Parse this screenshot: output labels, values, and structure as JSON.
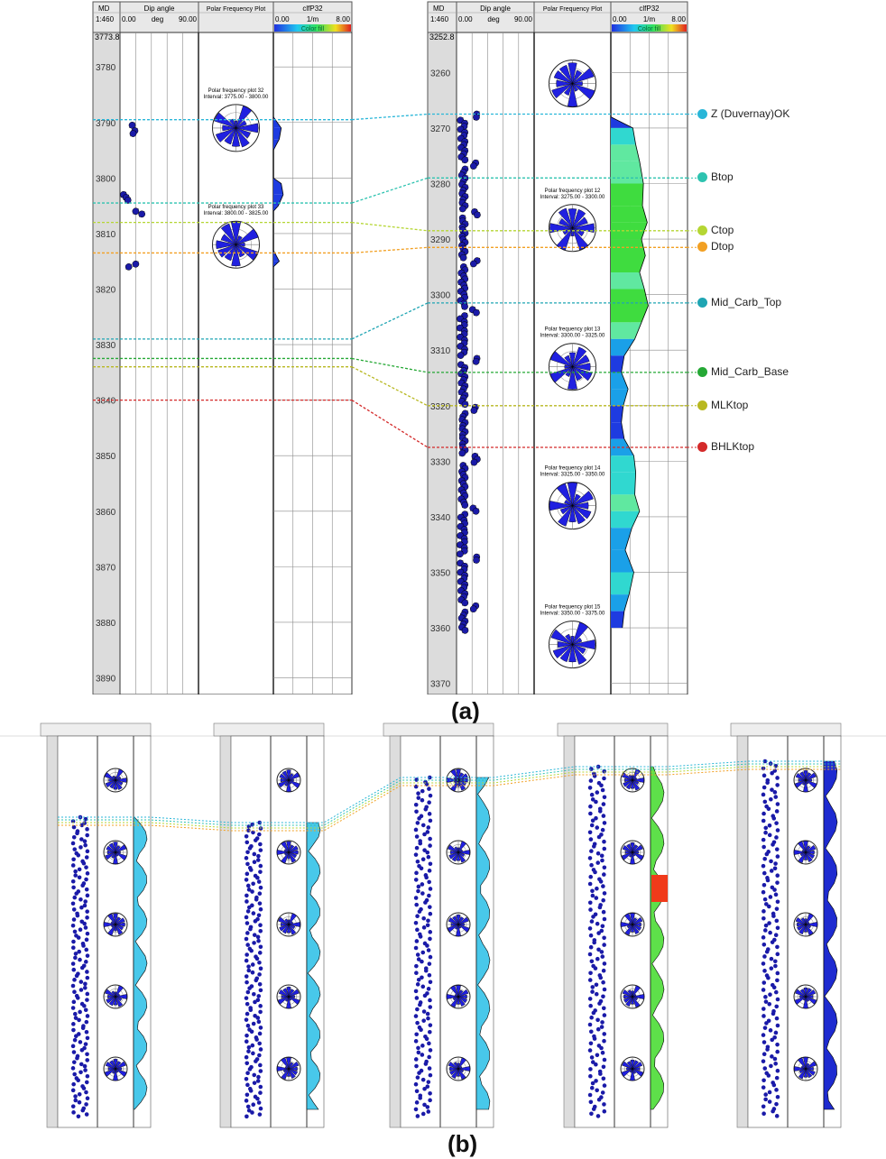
{
  "panel_a": {
    "caption": "(a)",
    "header": {
      "md_label": "MD",
      "md_scale": "1:460",
      "dip_label": "Dip angle",
      "dip_min": "0.00",
      "dip_unit": "deg",
      "dip_max": "90.00",
      "polar_label": "Polar Frequency Plot",
      "p32_label": "clfP32",
      "p32_min": "0.00",
      "p32_unit": "1/m",
      "p32_max": "8.00",
      "colorfill_label": "Color fill"
    }
  },
  "panel_b": {
    "caption": "(b)"
  },
  "chart_data": [
    {
      "type": "scatter",
      "panel": "a",
      "well": "left",
      "depth_top": 3773.8,
      "depth_range": [
        3773.8,
        3893
      ],
      "depth_ticks": [
        3780,
        3790,
        3800,
        3810,
        3820,
        3830,
        3840,
        3850,
        3860,
        3870,
        3880,
        3890
      ],
      "xlim": [
        0,
        90
      ],
      "dips": [
        {
          "md": 3790.5,
          "dip": 14
        },
        {
          "md": 3791.5,
          "dip": 17
        },
        {
          "md": 3792,
          "dip": 15
        },
        {
          "md": 3803,
          "dip": 4
        },
        {
          "md": 3803.5,
          "dip": 7
        },
        {
          "md": 3804,
          "dip": 9
        },
        {
          "md": 3806,
          "dip": 18
        },
        {
          "md": 3806.5,
          "dip": 25
        },
        {
          "md": 3816,
          "dip": 10
        },
        {
          "md": 3815.5,
          "dip": 18
        }
      ],
      "rose_plots": [
        {
          "title": "Polar frequency plot 32",
          "interval": "Interval: 3775.00 - 3800.00",
          "md": 3791
        },
        {
          "title": "Polar frequency plot 33",
          "interval": "Interval: 3800.00 - 3825.00",
          "md": 3812
        }
      ],
      "p32": [
        {
          "md": 3789,
          "v": 0.0
        },
        {
          "md": 3791,
          "v": 0.8
        },
        {
          "md": 3793,
          "v": 0.6
        },
        {
          "md": 3795,
          "v": 0.0
        },
        {
          "md": 3800,
          "v": 0.0
        },
        {
          "md": 3801,
          "v": 0.8
        },
        {
          "md": 3803,
          "v": 1.0
        },
        {
          "md": 3805,
          "v": 0.5
        },
        {
          "md": 3806,
          "v": 0.0
        },
        {
          "md": 3813,
          "v": 0.0
        },
        {
          "md": 3815,
          "v": 0.6
        },
        {
          "md": 3816,
          "v": 0.0
        }
      ]
    },
    {
      "type": "scatter",
      "panel": "a",
      "well": "right",
      "depth_top": 3252.8,
      "depth_range": [
        3252.8,
        3372
      ],
      "depth_ticks": [
        3260,
        3270,
        3280,
        3290,
        3300,
        3310,
        3320,
        3330,
        3340,
        3350,
        3360,
        3370
      ],
      "xlim": [
        0,
        90
      ],
      "rose_plots": [
        {
          "title": "",
          "interval": "",
          "md": 3262
        },
        {
          "title": "Polar frequency plot 12",
          "interval": "Interval: 3275.00 - 3300.00",
          "md": 3288
        },
        {
          "title": "Polar frequency plot 13",
          "interval": "Interval: 3300.00 - 3325.00",
          "md": 3313
        },
        {
          "title": "Polar frequency plot 14",
          "interval": "Interval: 3325.00 - 3350.00",
          "md": 3338
        },
        {
          "title": "Polar frequency plot 15",
          "interval": "Interval: 3350.00 - 3375.00",
          "md": 3363
        }
      ],
      "p32": [
        {
          "md": 3268,
          "v": 0.0
        },
        {
          "md": 3270,
          "v": 2.3
        },
        {
          "md": 3273,
          "v": 2.6
        },
        {
          "md": 3276,
          "v": 3.0
        },
        {
          "md": 3280,
          "v": 3.4
        },
        {
          "md": 3284,
          "v": 3.3
        },
        {
          "md": 3287,
          "v": 3.8
        },
        {
          "md": 3290,
          "v": 3.2
        },
        {
          "md": 3293,
          "v": 3.6
        },
        {
          "md": 3296,
          "v": 3.0
        },
        {
          "md": 3299,
          "v": 3.5
        },
        {
          "md": 3302,
          "v": 3.9
        },
        {
          "md": 3305,
          "v": 3.2
        },
        {
          "md": 3308,
          "v": 2.5
        },
        {
          "md": 3311,
          "v": 1.4
        },
        {
          "md": 3314,
          "v": 1.1
        },
        {
          "md": 3317,
          "v": 1.8
        },
        {
          "md": 3320,
          "v": 1.3
        },
        {
          "md": 3323,
          "v": 1.1
        },
        {
          "md": 3326,
          "v": 1.4
        },
        {
          "md": 3329,
          "v": 2.4
        },
        {
          "md": 3332,
          "v": 2.6
        },
        {
          "md": 3336,
          "v": 2.5
        },
        {
          "md": 3339,
          "v": 3.0
        },
        {
          "md": 3342,
          "v": 2.2
        },
        {
          "md": 3346,
          "v": 1.5
        },
        {
          "md": 3350,
          "v": 2.4
        },
        {
          "md": 3354,
          "v": 1.9
        },
        {
          "md": 3357,
          "v": 1.4
        },
        {
          "md": 3360,
          "v": 1.2
        }
      ]
    }
  ],
  "markers": [
    {
      "name": "Z (Duvernay)OK",
      "color": "#29b6d8",
      "md_left": 3789.5,
      "md_right": 3267.5
    },
    {
      "name": "Btop",
      "color": "#2ec3b0",
      "md_left": 3804.5,
      "md_right": 3279
    },
    {
      "name": "Ctop",
      "color": "#b5d633",
      "md_left": 3808,
      "md_right": 3288.5
    },
    {
      "name": "Dtop",
      "color": "#f2a023",
      "md_left": 3813.5,
      "md_right": 3291.5
    },
    {
      "name": "Mid_Carb_Top",
      "color": "#1fa5b3",
      "md_left": 3829,
      "md_right": 3301.5
    },
    {
      "name": "Mid_Carb_Base",
      "color": "#25a835",
      "md_left": 3832.5,
      "md_right": 3314
    },
    {
      "name": "MLKtop",
      "color": "#b8b820",
      "md_left": 3834,
      "md_right": 3320
    },
    {
      "name": "BHLKtop",
      "color": "#d42a2a",
      "md_left": 3840,
      "md_right": 3327.5
    }
  ],
  "colors": {
    "dip_dot": "#1a1aa8",
    "rose_fill": "#2020e0",
    "p32_curve": "#1e1ed2",
    "track_grid": "#8a8a8a",
    "header_bg": "#e8e8e8",
    "depth_track_bg": "#dcdcdc"
  }
}
